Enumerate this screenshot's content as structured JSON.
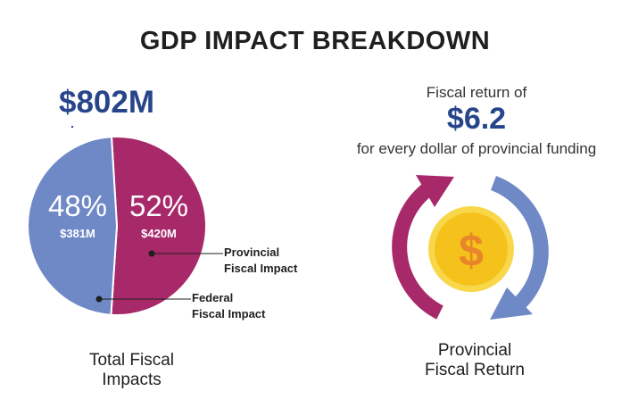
{
  "title": "GDP IMPACT BREAKDOWN",
  "total_value": "$802M",
  "pie_caption": [
    "Total Fiscal",
    "Impacts"
  ],
  "fiscal_return": {
    "prefix": "Fiscal return of",
    "value": "$6.2",
    "suffix": "for every dollar of provincial funding",
    "caption": [
      "Provincial",
      "Fiscal Return"
    ],
    "icon": "dollar-coin-cycle-icon"
  },
  "colors": {
    "provincial": "#a8296a",
    "federal": "#6f88c6",
    "navy": "#27458a",
    "coin_outer": "#f8d74a",
    "coin_inner": "#f5c21b",
    "dollar_sign": "#e8862a"
  },
  "chart_data": {
    "type": "pie",
    "slices": [
      {
        "name": "Provincial Fiscal Impact",
        "label": [
          "Provincial",
          "Fiscal Impact"
        ],
        "percent": 52,
        "percent_label": "52%",
        "amount": "$420M"
      },
      {
        "name": "Federal Fiscal Impact",
        "label": [
          "Federal",
          "Fiscal Impact"
        ],
        "percent": 48,
        "percent_label": "48%",
        "amount": "$381M"
      }
    ]
  }
}
